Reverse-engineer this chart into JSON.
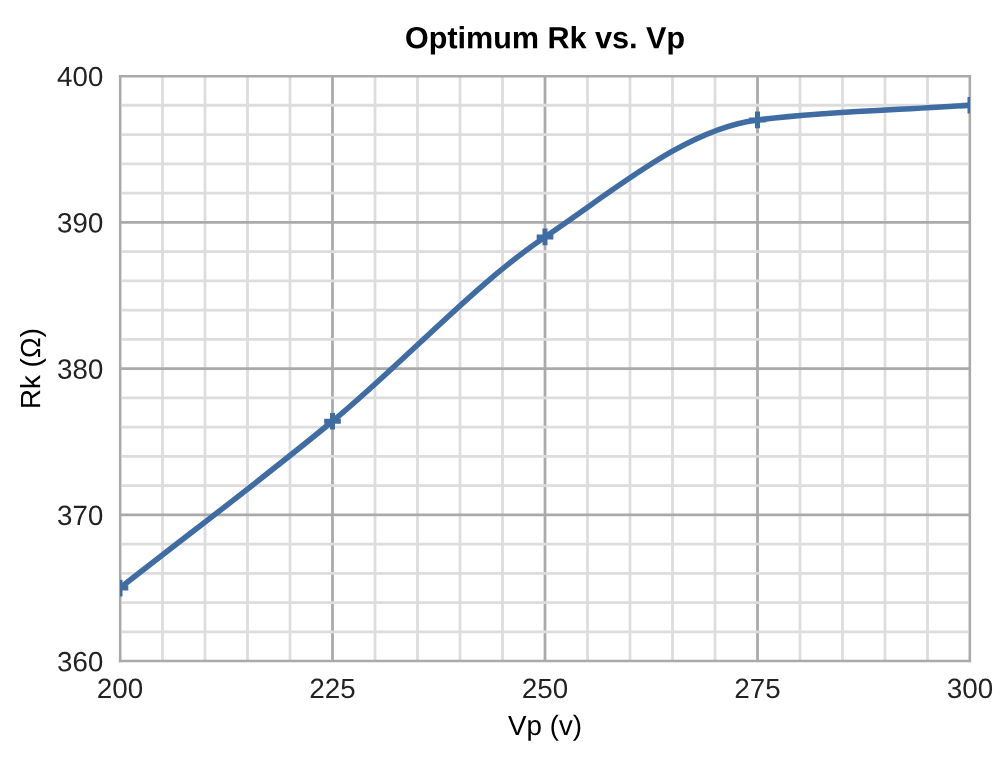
{
  "chart_data": {
    "type": "line",
    "title": "Optimum Rk vs. Vp",
    "xlabel": "Vp (v)",
    "ylabel": "Rk (Ω)",
    "x": [
      200,
      225,
      250,
      275,
      300
    ],
    "series": [
      {
        "color": "#3f6ca3",
        "values": [
          365,
          376.4,
          389,
          397,
          398
        ]
      }
    ],
    "xlim": [
      200,
      300
    ],
    "xticks": [
      200,
      {
        "value": 205,
        "label": null
      },
      {
        "value": 210,
        "label": null
      },
      {
        "value": 215,
        "label": null
      },
      {
        "value": 220,
        "label": null
      },
      225,
      {
        "value": 230,
        "label": null
      },
      {
        "value": 235,
        "label": null
      },
      {
        "value": 240,
        "label": null
      },
      {
        "value": 245,
        "label": null
      },
      250,
      {
        "value": 255,
        "label": null
      },
      {
        "value": 260,
        "label": null
      },
      {
        "value": 265,
        "label": null
      },
      {
        "value": 270,
        "label": null
      },
      275,
      {
        "value": 280,
        "label": null
      },
      {
        "value": 285,
        "label": null
      },
      {
        "value": 290,
        "label": null
      },
      {
        "value": 295,
        "label": null
      },
      300
    ],
    "ylim": [
      360,
      400
    ],
    "yticks": [
      360,
      {
        "value": 362,
        "label": null
      },
      {
        "value": 364,
        "label": null
      },
      {
        "value": 366,
        "label": null
      },
      {
        "value": 368,
        "label": null
      },
      370,
      {
        "value": 372,
        "label": null
      },
      {
        "value": 374,
        "label": null
      },
      {
        "value": 376,
        "label": null
      },
      {
        "value": 378,
        "label": null
      },
      380,
      {
        "value": 382,
        "label": null
      },
      {
        "value": 384,
        "label": null
      },
      {
        "value": 386,
        "label": null
      },
      {
        "value": 388,
        "label": null
      },
      390,
      {
        "value": 392,
        "label": null
      },
      {
        "value": 394,
        "label": null
      },
      {
        "value": 396,
        "label": null
      },
      {
        "value": 398,
        "label": null
      },
      400
    ],
    "grid": true,
    "marker": "cross",
    "line_style": "solid"
  }
}
